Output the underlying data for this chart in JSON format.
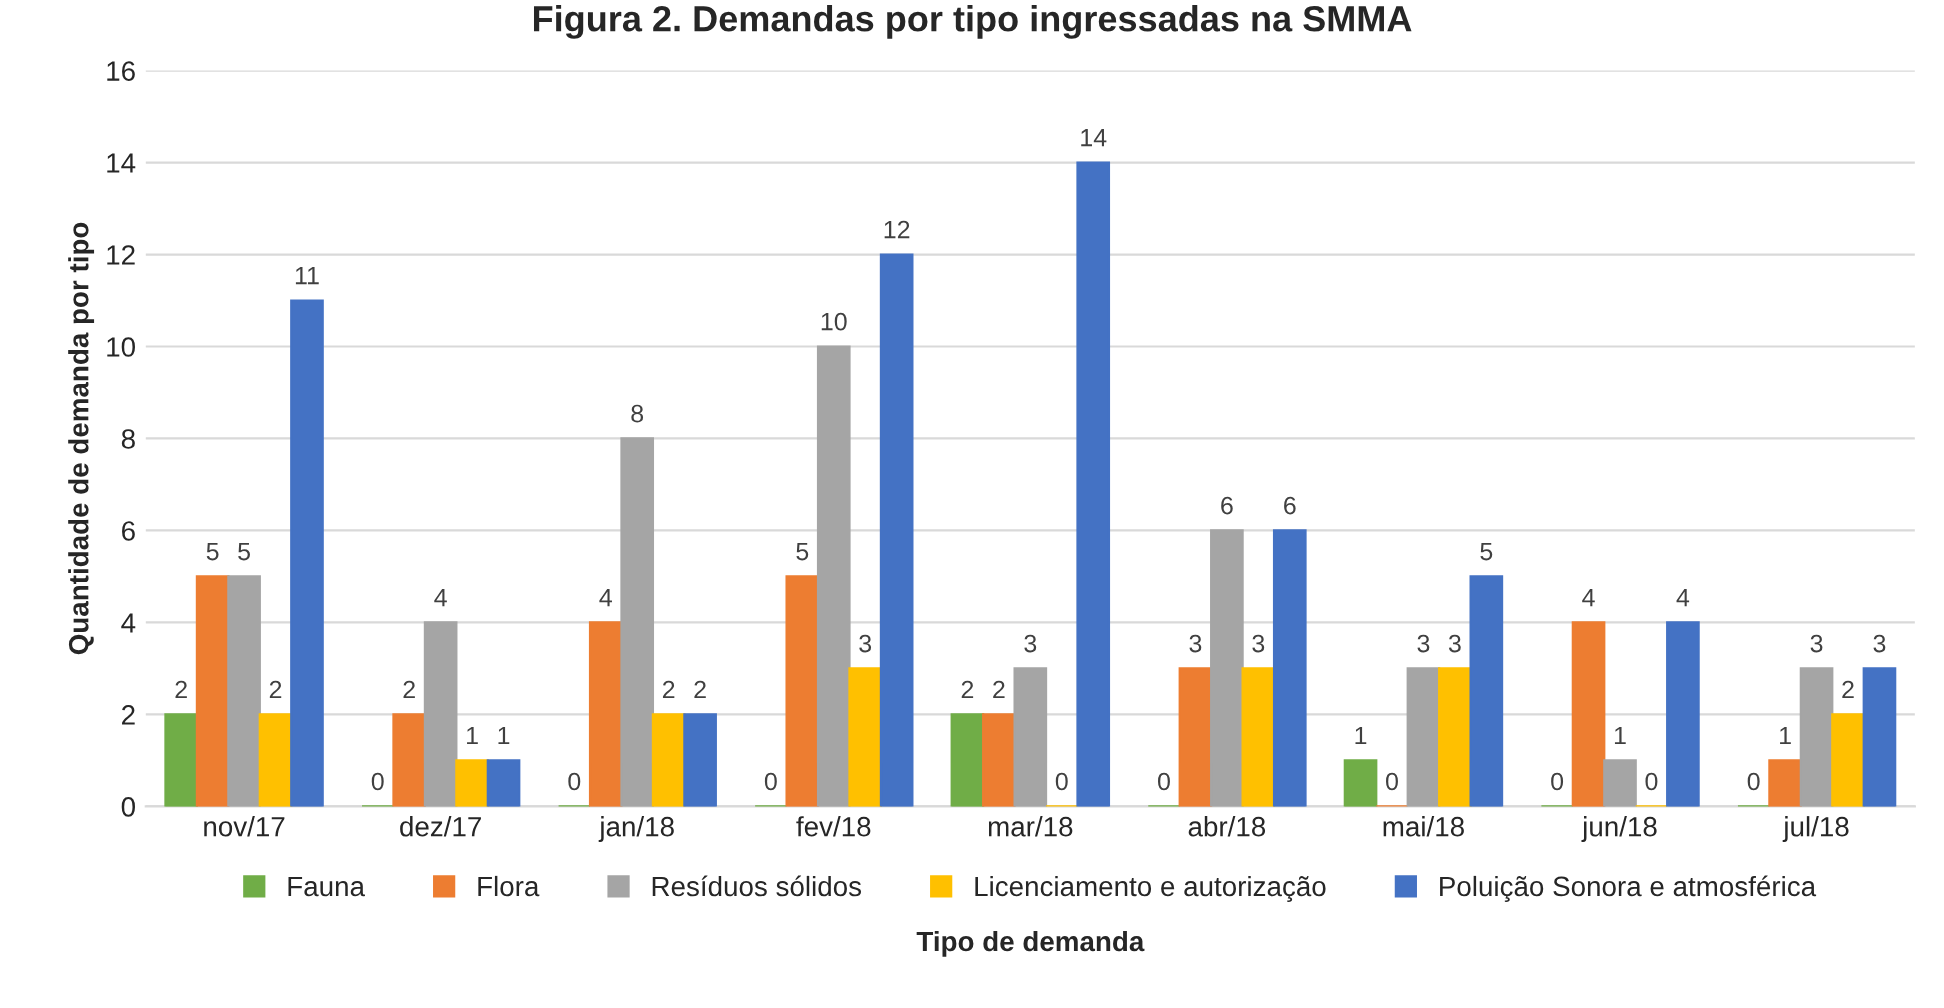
{
  "chart_data": {
    "type": "bar",
    "title": "Figura 2. Demandas por tipo ingressadas na SMMA",
    "xlabel": "Tipo de demanda",
    "ylabel": "Quantidade de demanda por tipo",
    "categories": [
      "nov/17",
      "dez/17",
      "jan/18",
      "fev/18",
      "mar/18",
      "abr/18",
      "mai/18",
      "jun/18",
      "jul/18"
    ],
    "series": [
      {
        "name": "Fauna",
        "color": "#70ad47",
        "values": [
          2,
          0,
          0,
          0,
          2,
          0,
          1,
          0,
          0
        ]
      },
      {
        "name": "Flora",
        "color": "#ed7d31",
        "values": [
          5,
          2,
          4,
          5,
          2,
          3,
          0,
          4,
          1
        ]
      },
      {
        "name": "Resíduos sólidos",
        "color": "#a5a5a5",
        "values": [
          5,
          4,
          8,
          10,
          3,
          6,
          3,
          1,
          3
        ]
      },
      {
        "name": "Licenciamento e autorização",
        "color": "#ffc000",
        "values": [
          2,
          1,
          2,
          3,
          0,
          3,
          3,
          0,
          2
        ]
      },
      {
        "name": "Poluição Sonora e atmosférica",
        "color": "#4472c4",
        "values": [
          11,
          1,
          2,
          12,
          14,
          6,
          5,
          4,
          3
        ]
      }
    ],
    "ylim": [
      0,
      16
    ],
    "yticks": [
      0,
      2,
      4,
      6,
      8,
      10,
      12,
      14,
      16
    ],
    "grid": "y",
    "legend": "bottom",
    "data_labels": true
  }
}
